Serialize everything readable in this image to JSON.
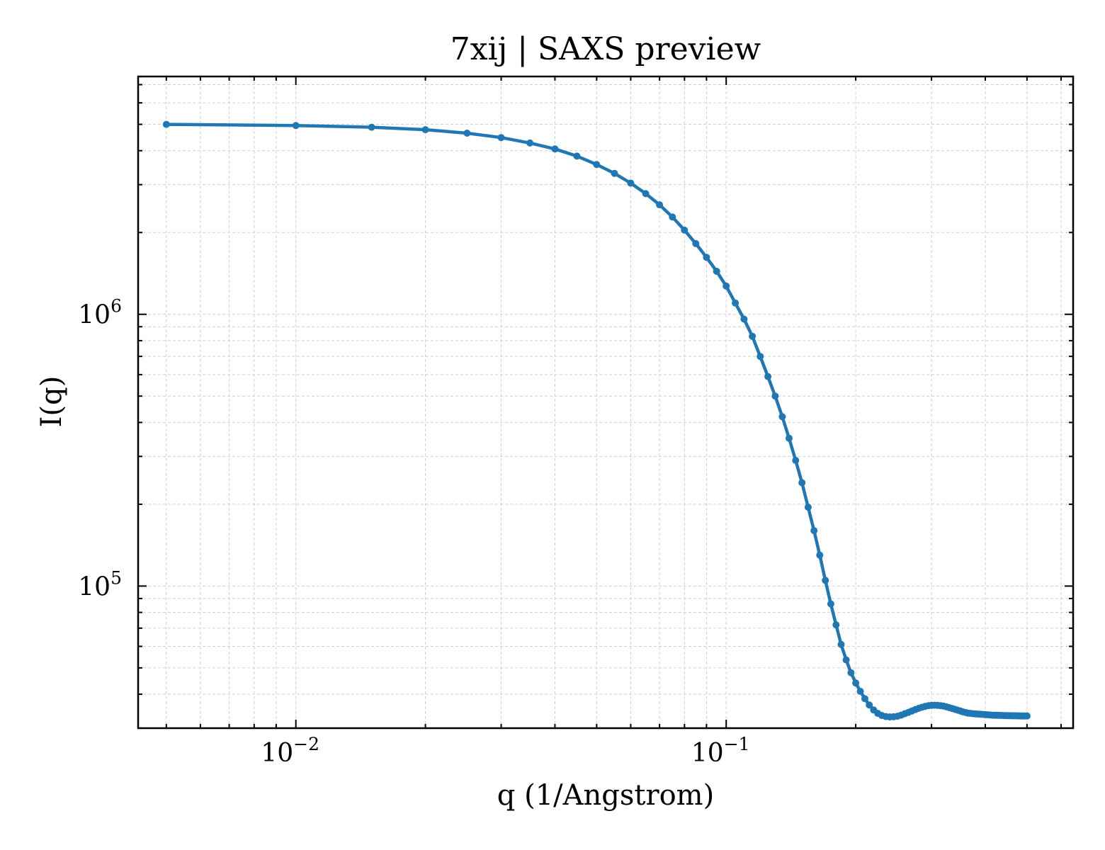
{
  "chart_data": {
    "type": "line",
    "title": "7xij | SAXS preview",
    "xlabel": "q (1/Angstrom)",
    "ylabel": "I(q)",
    "xscale": "log",
    "yscale": "log",
    "xlim": [
      0.0043,
      0.64
    ],
    "ylim": [
      30000,
      7500000
    ],
    "grid": true,
    "x_ticks": [
      {
        "value": 0.01,
        "label": "10",
        "exponent": "−2"
      },
      {
        "value": 0.1,
        "label": "10",
        "exponent": "−1"
      }
    ],
    "y_ticks": [
      {
        "value": 100000,
        "label": "10",
        "exponent": "5"
      },
      {
        "value": 1000000,
        "label": "10",
        "exponent": "6"
      }
    ],
    "series": [
      {
        "color": "#1f77b4",
        "x": [
          0.005,
          0.01,
          0.015,
          0.02,
          0.025,
          0.03,
          0.035,
          0.04,
          0.045,
          0.05,
          0.055,
          0.06,
          0.065,
          0.07,
          0.075,
          0.08,
          0.085,
          0.09,
          0.095,
          0.1,
          0.105,
          0.11,
          0.115,
          0.12,
          0.125,
          0.13,
          0.135,
          0.14,
          0.145,
          0.15,
          0.155,
          0.16,
          0.165,
          0.17,
          0.175,
          0.18,
          0.185,
          0.19,
          0.195,
          0.2,
          0.205,
          0.21,
          0.215,
          0.22,
          0.225,
          0.23,
          0.235,
          0.24,
          0.245,
          0.25,
          0.255,
          0.26,
          0.265,
          0.27,
          0.275,
          0.28,
          0.285,
          0.29,
          0.295,
          0.3,
          0.305,
          0.31,
          0.315,
          0.32,
          0.325,
          0.33,
          0.335,
          0.34,
          0.345,
          0.35,
          0.355,
          0.36,
          0.365,
          0.37,
          0.375,
          0.38,
          0.385,
          0.39,
          0.395,
          0.4,
          0.405,
          0.41,
          0.415,
          0.42,
          0.425,
          0.43,
          0.435,
          0.44,
          0.445,
          0.45,
          0.455,
          0.46,
          0.465,
          0.47,
          0.475,
          0.48,
          0.485,
          0.49,
          0.495,
          0.5
        ],
        "y": [
          5000000,
          4950000,
          4880000,
          4780000,
          4640000,
          4470000,
          4270000,
          4060000,
          3820000,
          3560000,
          3300000,
          3040000,
          2780000,
          2530000,
          2280000,
          2040000,
          1820000,
          1620000,
          1440000,
          1270000,
          1100000,
          960000,
          830000,
          700000,
          590000,
          500000,
          420000,
          350000,
          290000,
          240000,
          195000,
          160000,
          130000,
          105000,
          86000,
          72000,
          61000,
          53500,
          48000,
          44000,
          41000,
          38500,
          36500,
          35000,
          34000,
          33400,
          33100,
          33000,
          33050,
          33200,
          33500,
          33900,
          34300,
          34700,
          35100,
          35500,
          35800,
          36100,
          36300,
          36400,
          36450,
          36400,
          36300,
          36150,
          35950,
          35700,
          35450,
          35200,
          34950,
          34700,
          34450,
          34250,
          34100,
          34000,
          33900,
          33850,
          33800,
          33750,
          33700,
          33650,
          33600,
          33550,
          33500,
          33480,
          33460,
          33440,
          33420,
          33400,
          33380,
          33360,
          33350,
          33340,
          33330,
          33320,
          33310,
          33300,
          33290,
          33280,
          33270,
          33260
        ]
      }
    ]
  }
}
